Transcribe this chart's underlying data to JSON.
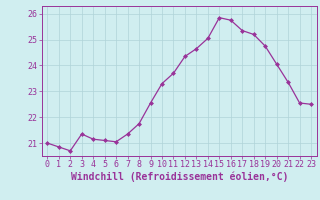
{
  "x": [
    0,
    1,
    2,
    3,
    4,
    5,
    6,
    7,
    8,
    9,
    10,
    11,
    12,
    13,
    14,
    15,
    16,
    17,
    18,
    19,
    20,
    21,
    22,
    23
  ],
  "y": [
    21.0,
    20.85,
    20.7,
    21.35,
    21.15,
    21.1,
    21.05,
    21.35,
    21.75,
    22.55,
    23.3,
    23.7,
    24.35,
    24.65,
    25.05,
    25.85,
    25.75,
    25.35,
    25.2,
    24.75,
    24.05,
    23.35,
    22.55,
    22.5
  ],
  "line_color": "#993399",
  "marker": "D",
  "marker_size": 2,
  "bg_color": "#d0eef0",
  "grid_color": "#b0d4d8",
  "xlabel": "Windchill (Refroidissement éolien,°C)",
  "ylim": [
    20.5,
    26.3
  ],
  "xlim": [
    -0.5,
    23.5
  ],
  "yticks": [
    21,
    22,
    23,
    24,
    25,
    26
  ],
  "xticks": [
    0,
    1,
    2,
    3,
    4,
    5,
    6,
    7,
    8,
    9,
    10,
    11,
    12,
    13,
    14,
    15,
    16,
    17,
    18,
    19,
    20,
    21,
    22,
    23
  ],
  "axis_color": "#993399",
  "tick_color": "#993399",
  "label_fontsize": 7,
  "tick_fontsize": 6
}
